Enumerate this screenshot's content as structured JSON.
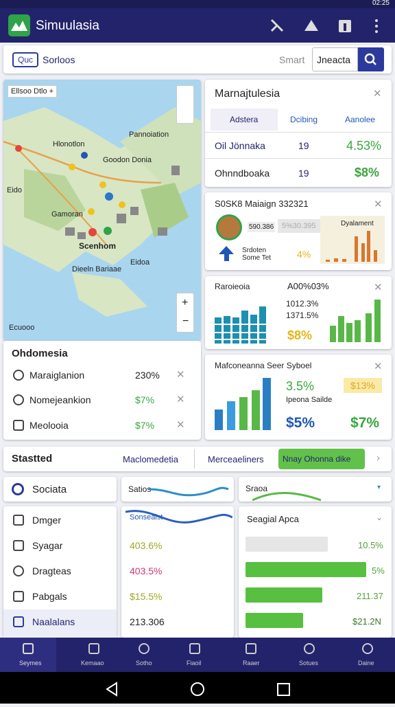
{
  "status_bar": {
    "time": "02:25"
  },
  "app_bar": {
    "title": "Simuulasia"
  },
  "search": {
    "chip": "Quc",
    "label": "Sorloos",
    "hint": "Smart",
    "query": "Jneacta"
  },
  "map": {
    "filter": "Ellsoo Dtlo +",
    "labels": [
      "Pannoiation",
      "Hlonotlon",
      "Goodon Donia",
      "Eido",
      "Gamoran",
      "Scenhom",
      "Dieeln Bariaae",
      "Eidoa",
      "Ecuooo"
    ]
  },
  "region_card": {
    "title": "Ohdomesia",
    "rows": [
      {
        "name": "Maraiglanion",
        "value": "230%"
      },
      {
        "name": "Nomejeankion",
        "value": "$7%"
      },
      {
        "name": "Meolooia",
        "value": "$7%"
      }
    ]
  },
  "card1": {
    "title": "Marnajtulesia",
    "tabs": [
      "Adstera",
      "Dcibing",
      "Aanolee"
    ],
    "rows": [
      {
        "name": "Oil Jönnaka",
        "count": "19",
        "value": "4.53%"
      },
      {
        "name": "Ohnndboaka",
        "count": "19",
        "value": "$8%"
      }
    ]
  },
  "card2": {
    "title": "S0SK8 Maiaign 332321",
    "stat_a": "590.386",
    "stat_b": "5%30.395",
    "chart_label": "Dyalament",
    "note": "Srdoten Some Tet",
    "value": "4%"
  },
  "card3": {
    "title": "Raroieoia",
    "headline": "A00%03%",
    "line_a": "1012.3%",
    "line_b": "1371.5%",
    "value": "$8%"
  },
  "card4": {
    "title": "Mafconeanna Seer Syboel",
    "value_a": "3.5%",
    "badge": "$13%",
    "label": "Ipeona Sailde",
    "value_b": "$5%",
    "value_c": "$7%"
  },
  "tabs": {
    "title": "Stastted",
    "items": [
      "Maclomedetia",
      "Merceaeliners",
      "Nnay Ohonna dike"
    ]
  },
  "list": {
    "header": "Sociata",
    "items": [
      "Dmger",
      "Syagar",
      "Dragteas",
      "Pabgals",
      "Naalalans"
    ]
  },
  "middle": {
    "header": "Satios",
    "subheader": "Sonsealst",
    "values": [
      "403.6%",
      "403.5%",
      "$15.5%",
      "213.306"
    ]
  },
  "right": {
    "header": "Sraoa",
    "subheader": "Seagial Apca",
    "values": [
      "10.5%",
      "5%",
      "211.37",
      "$21.2N"
    ]
  },
  "bottom_nav": [
    "Seymes",
    "Kemaao",
    "Sotho",
    "Fiaoil",
    "Raaer",
    "Sotues",
    "Daine"
  ]
}
